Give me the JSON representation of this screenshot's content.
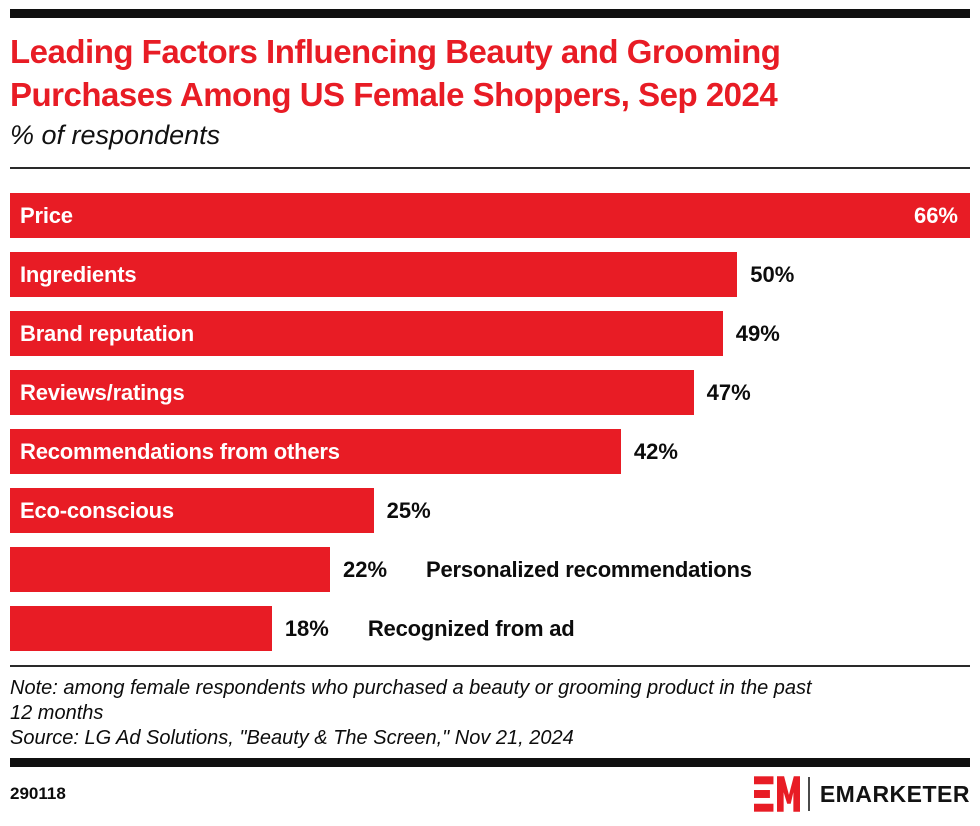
{
  "header": {
    "title_lines": [
      "Leading Factors Influencing Beauty and Grooming",
      "Purchases Among US Female Shoppers, Sep 2024"
    ],
    "subtitle": "% of respondents",
    "title_color": "#e81c25"
  },
  "chart_data": {
    "type": "bar",
    "orientation": "horizontal",
    "title": "Leading Factors Influencing Beauty and Grooming Purchases Among US Female Shoppers, Sep 2024",
    "subtitle": "% of respondents",
    "unit": "%",
    "categories": [
      "Price",
      "Ingredients",
      "Brand reputation",
      "Reviews/ratings",
      "Recommendations from others",
      "Eco-conscious",
      "Personalized recommendations",
      "Recognized from ad"
    ],
    "values": [
      66,
      50,
      49,
      47,
      42,
      25,
      22,
      18
    ],
    "value_labels": [
      "66%",
      "50%",
      "49%",
      "47%",
      "42%",
      "25%",
      "22%",
      "18%"
    ],
    "xlim": [
      0,
      66
    ],
    "bar_color": "#e81c25",
    "grid": false,
    "legend": false,
    "value_inside": [
      true,
      false,
      false,
      false,
      false,
      false,
      false,
      false
    ],
    "category_inside": [
      true,
      true,
      true,
      true,
      true,
      true,
      false,
      false
    ]
  },
  "notes": {
    "note_lines": [
      "Note: among female respondents who purchased a beauty or grooming product in the past",
      "12 months"
    ],
    "source": "Source: LG Ad Solutions, \"Beauty & The Screen,\" Nov 21, 2024"
  },
  "footer": {
    "chart_id": "290118",
    "brand": "EMARKETER",
    "logo_color": "#e81c25"
  }
}
